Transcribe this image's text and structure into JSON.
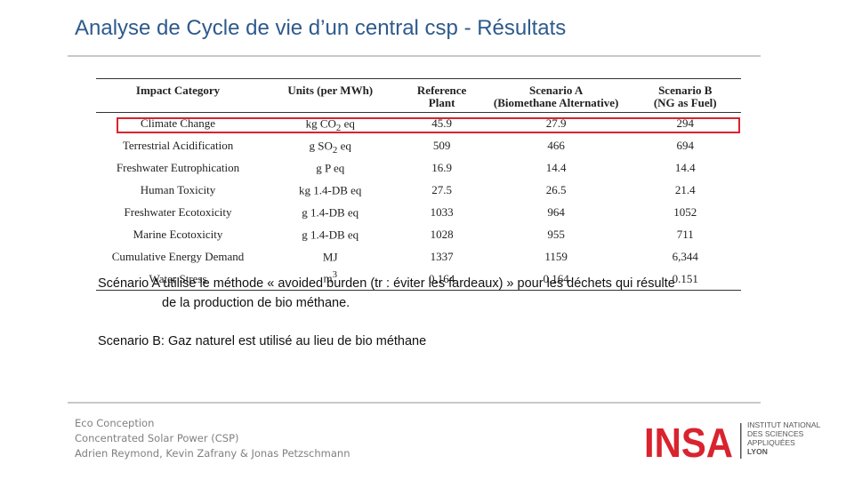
{
  "slide": {
    "title": "Analyse de Cycle de vie d’un central csp - Résultats"
  },
  "table": {
    "headers": {
      "impact": "Impact Category",
      "units": "Units (per MWh)",
      "reference_l1": "Reference",
      "reference_l2": "Plant",
      "scenario_a_l1": "Scenario A",
      "scenario_a_l2": "(Biomethane Alternative)",
      "scenario_b_l1": "Scenario B",
      "scenario_b_l2": "(NG as Fuel)"
    },
    "rows": [
      {
        "category": "Climate Change",
        "unit_pre": "kg CO",
        "unit_sub": "2",
        "unit_sup": "",
        "unit_post": " eq",
        "reference": "45.9",
        "scenario_a": "27.9",
        "scenario_b": "294"
      },
      {
        "category": "Terrestrial Acidification",
        "unit_pre": "g SO",
        "unit_sub": "2",
        "unit_sup": "",
        "unit_post": " eq",
        "reference": "509",
        "scenario_a": "466",
        "scenario_b": "694"
      },
      {
        "category": "Freshwater Eutrophication",
        "unit_pre": "g P eq",
        "unit_sub": "",
        "unit_sup": "",
        "unit_post": "",
        "reference": "16.9",
        "scenario_a": "14.4",
        "scenario_b": "14.4"
      },
      {
        "category": "Human Toxicity",
        "unit_pre": "kg 1.4-DB eq",
        "unit_sub": "",
        "unit_sup": "",
        "unit_post": "",
        "reference": "27.5",
        "scenario_a": "26.5",
        "scenario_b": "21.4"
      },
      {
        "category": "Freshwater Ecotoxicity",
        "unit_pre": "g 1.4-DB eq",
        "unit_sub": "",
        "unit_sup": "",
        "unit_post": "",
        "reference": "1033",
        "scenario_a": "964",
        "scenario_b": "1052"
      },
      {
        "category": "Marine Ecotoxicity",
        "unit_pre": "g 1.4-DB eq",
        "unit_sub": "",
        "unit_sup": "",
        "unit_post": "",
        "reference": "1028",
        "scenario_a": "955",
        "scenario_b": "711"
      },
      {
        "category": "Cumulative Energy Demand",
        "unit_pre": "MJ",
        "unit_sub": "",
        "unit_sup": "",
        "unit_post": "",
        "reference": "1337",
        "scenario_a": "1159",
        "scenario_b": "6,344"
      },
      {
        "category": "Water Stress",
        "unit_pre": "m",
        "unit_sub": "",
        "unit_sup": "3",
        "unit_post": "",
        "reference": "0.164",
        "scenario_a": "0.164",
        "scenario_b": "0.151"
      }
    ],
    "highlight_color": "#d9232e"
  },
  "notes": {
    "scenario_a_line1": "Scénario A utilise le méthode « avoided burden (tr : éviter les fardeaux) » pour les déchets qui résulte",
    "scenario_a_line2": "de la production de bio méthane.",
    "scenario_b": "Scenario B:  Gaz naturel est utilisé au lieu de bio méthane"
  },
  "footer": {
    "line1": "Eco Conception",
    "line2": "Concentrated Solar Power (CSP)",
    "line3": "Adrien Reymond, Kevin Zafrany & Jonas Petzschmann"
  },
  "logo": {
    "wordmark": "INSA",
    "line1": "INSTITUT NATIONAL",
    "line2": "DES SCIENCES",
    "line3": "APPLIQUÉES",
    "line4": "LYON",
    "color": "#d9232e"
  },
  "colors": {
    "title": "#2e5a8c",
    "rule": "#c8c8c8",
    "footer_text": "#808080"
  }
}
